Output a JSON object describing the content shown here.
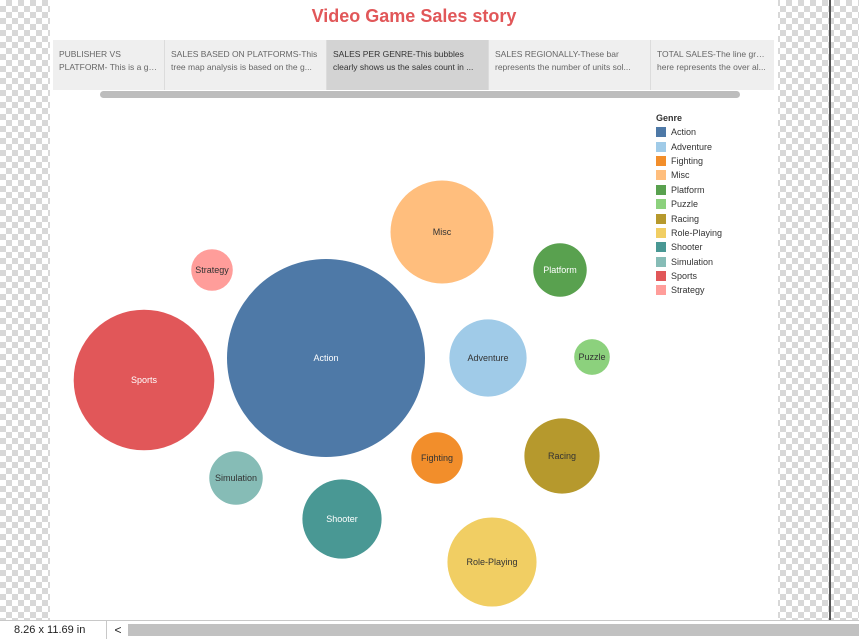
{
  "story": {
    "title": "Video Game Sales story"
  },
  "tabs": [
    {
      "line1": "PUBLISHER VS",
      "line2": "PLATFORM- This is a gia...",
      "active": false
    },
    {
      "line1": "SALES BASED ON PLATFORMS-This",
      "line2": "tree map analysis is based on the g...",
      "active": false
    },
    {
      "line1": "SALES PER GENRE-This bubbles",
      "line2": "clearly shows us the sales count in ...",
      "active": true
    },
    {
      "line1": "SALES REGIONALLY-These bar",
      "line2": "represents the number of units sol...",
      "active": false
    },
    {
      "line1": "TOTAL SALES-The line graph",
      "line2": "here represents the over al...",
      "active": false
    }
  ],
  "legend": {
    "title": "Genre",
    "items": [
      {
        "label": "Action",
        "color": "#4e79a7"
      },
      {
        "label": "Adventure",
        "color": "#a0cbe8"
      },
      {
        "label": "Fighting",
        "color": "#f28e2b"
      },
      {
        "label": "Misc",
        "color": "#ffbe7d"
      },
      {
        "label": "Platform",
        "color": "#59a14f"
      },
      {
        "label": "Puzzle",
        "color": "#8cd17d"
      },
      {
        "label": "Racing",
        "color": "#b6992d"
      },
      {
        "label": "Role-Playing",
        "color": "#f1ce63"
      },
      {
        "label": "Shooter",
        "color": "#499894"
      },
      {
        "label": "Simulation",
        "color": "#86bcb6"
      },
      {
        "label": "Sports",
        "color": "#e15759"
      },
      {
        "label": "Strategy",
        "color": "#ff9d9a"
      }
    ]
  },
  "chart_data": {
    "type": "bubble",
    "title": "",
    "size_measure": "relative size (diameter-based)",
    "bubbles": [
      {
        "genre": "Action",
        "size": 100,
        "label_color": "#ffffff"
      },
      {
        "genre": "Sports",
        "size": 71,
        "label_color": "#ffffff"
      },
      {
        "genre": "Misc",
        "size": 52,
        "label_color": "#333333"
      },
      {
        "genre": "Adventure",
        "size": 39,
        "label_color": "#333333"
      },
      {
        "genre": "Shooter",
        "size": 40,
        "label_color": "#ffffff"
      },
      {
        "genre": "Racing",
        "size": 38,
        "label_color": "#333333"
      },
      {
        "genre": "Role-Playing",
        "size": 45,
        "label_color": "#333333"
      },
      {
        "genre": "Platform",
        "size": 27,
        "label_color": "#ffffff"
      },
      {
        "genre": "Simulation",
        "size": 27,
        "label_color": "#333333"
      },
      {
        "genre": "Fighting",
        "size": 26,
        "label_color": "#333333"
      },
      {
        "genre": "Strategy",
        "size": 21,
        "label_color": "#333333"
      },
      {
        "genre": "Puzzle",
        "size": 18,
        "label_color": "#333333"
      }
    ]
  },
  "status": {
    "page_size": "8.26 x 11.69 in",
    "scroll_left_glyph": "<"
  }
}
